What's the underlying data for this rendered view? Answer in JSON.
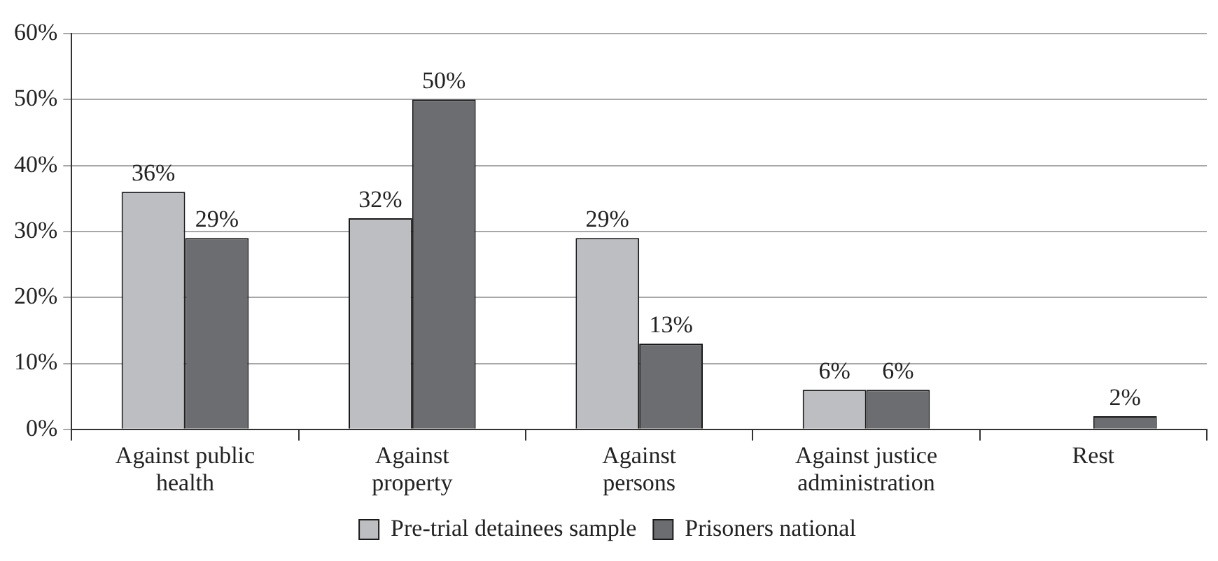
{
  "chart_data": {
    "type": "bar",
    "categories": [
      "Against public health",
      "Against property",
      "Against persons",
      "Against justice administration",
      "Rest"
    ],
    "series": [
      {
        "name": "Pre-trial detainees sample",
        "color": "#bdbec2",
        "values": [
          36,
          32,
          29,
          6,
          null
        ],
        "value_labels": [
          "36%",
          "32%",
          "29%",
          "6%",
          null
        ]
      },
      {
        "name": "Prisoners national",
        "color": "#6c6d71",
        "values": [
          29,
          50,
          13,
          6,
          2
        ],
        "value_labels": [
          "29%",
          "50%",
          "13%",
          "6%",
          "2%"
        ]
      }
    ],
    "ylim": [
      0,
      60
    ],
    "yticks": [
      {
        "value": 0,
        "label": "0%"
      },
      {
        "value": 10,
        "label": "10%"
      },
      {
        "value": 20,
        "label": "20%"
      },
      {
        "value": 30,
        "label": "30%"
      },
      {
        "value": 40,
        "label": "40%"
      },
      {
        "value": 50,
        "label": "50%"
      },
      {
        "value": 60,
        "label": "60%"
      }
    ],
    "grid": "y",
    "legend": "bottom"
  }
}
